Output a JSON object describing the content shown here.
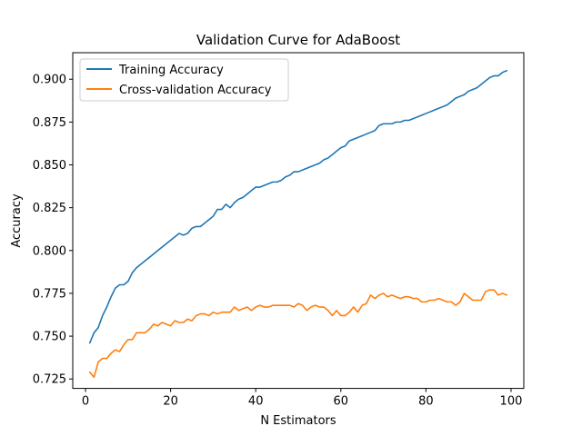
{
  "chart_data": {
    "type": "line",
    "title": "Validation Curve for AdaBoost",
    "xlabel": "N Estimators",
    "ylabel": "Accuracy",
    "xlim": [
      -3,
      103
    ],
    "ylim": [
      0.7195,
      0.9155
    ],
    "xticks": [
      0,
      20,
      40,
      60,
      80,
      100
    ],
    "yticks": [
      0.725,
      0.75,
      0.775,
      0.8,
      0.825,
      0.85,
      0.875,
      0.9
    ],
    "ytick_labels": [
      "0.725",
      "0.750",
      "0.775",
      "0.800",
      "0.825",
      "0.850",
      "0.875",
      "0.900"
    ],
    "grid": false,
    "legend_position": "upper-left",
    "series": [
      {
        "name": "Training Accuracy",
        "color": "#1f77b4",
        "x": [
          1,
          2,
          3,
          4,
          5,
          6,
          7,
          8,
          9,
          10,
          11,
          12,
          13,
          14,
          15,
          16,
          17,
          18,
          19,
          20,
          21,
          22,
          23,
          24,
          25,
          26,
          27,
          28,
          29,
          30,
          31,
          32,
          33,
          34,
          35,
          36,
          37,
          38,
          39,
          40,
          41,
          42,
          43,
          44,
          45,
          46,
          47,
          48,
          49,
          50,
          51,
          52,
          53,
          54,
          55,
          56,
          57,
          58,
          59,
          60,
          61,
          62,
          63,
          64,
          65,
          66,
          67,
          68,
          69,
          70,
          71,
          72,
          73,
          74,
          75,
          76,
          77,
          78,
          79,
          80,
          81,
          82,
          83,
          84,
          85,
          86,
          87,
          88,
          89,
          90,
          91,
          92,
          93,
          94,
          95,
          96,
          97,
          98,
          99
        ],
        "y": [
          0.746,
          0.752,
          0.755,
          0.762,
          0.767,
          0.773,
          0.778,
          0.78,
          0.78,
          0.782,
          0.787,
          0.79,
          0.792,
          0.794,
          0.796,
          0.798,
          0.8,
          0.802,
          0.804,
          0.806,
          0.808,
          0.81,
          0.809,
          0.81,
          0.813,
          0.814,
          0.814,
          0.816,
          0.818,
          0.82,
          0.824,
          0.824,
          0.827,
          0.825,
          0.828,
          0.83,
          0.831,
          0.833,
          0.835,
          0.837,
          0.837,
          0.838,
          0.839,
          0.84,
          0.84,
          0.841,
          0.843,
          0.844,
          0.846,
          0.846,
          0.847,
          0.848,
          0.849,
          0.85,
          0.851,
          0.853,
          0.854,
          0.856,
          0.858,
          0.86,
          0.861,
          0.864,
          0.865,
          0.866,
          0.867,
          0.868,
          0.869,
          0.87,
          0.873,
          0.874,
          0.874,
          0.874,
          0.875,
          0.875,
          0.876,
          0.876,
          0.877,
          0.878,
          0.879,
          0.88,
          0.881,
          0.882,
          0.883,
          0.884,
          0.885,
          0.887,
          0.889,
          0.89,
          0.891,
          0.893,
          0.894,
          0.895,
          0.897,
          0.899,
          0.901,
          0.902,
          0.902,
          0.904,
          0.905
        ]
      },
      {
        "name": "Cross-validation Accuracy",
        "color": "#ff7f0e",
        "x": [
          1,
          2,
          3,
          4,
          5,
          6,
          7,
          8,
          9,
          10,
          11,
          12,
          13,
          14,
          15,
          16,
          17,
          18,
          19,
          20,
          21,
          22,
          23,
          24,
          25,
          26,
          27,
          28,
          29,
          30,
          31,
          32,
          33,
          34,
          35,
          36,
          37,
          38,
          39,
          40,
          41,
          42,
          43,
          44,
          45,
          46,
          47,
          48,
          49,
          50,
          51,
          52,
          53,
          54,
          55,
          56,
          57,
          58,
          59,
          60,
          61,
          62,
          63,
          64,
          65,
          66,
          67,
          68,
          69,
          70,
          71,
          72,
          73,
          74,
          75,
          76,
          77,
          78,
          79,
          80,
          81,
          82,
          83,
          84,
          85,
          86,
          87,
          88,
          89,
          90,
          91,
          92,
          93,
          94,
          95,
          96,
          97,
          98,
          99
        ],
        "y": [
          0.729,
          0.726,
          0.735,
          0.737,
          0.737,
          0.74,
          0.742,
          0.741,
          0.745,
          0.748,
          0.748,
          0.752,
          0.752,
          0.752,
          0.754,
          0.757,
          0.756,
          0.758,
          0.757,
          0.756,
          0.759,
          0.758,
          0.758,
          0.76,
          0.759,
          0.762,
          0.763,
          0.763,
          0.762,
          0.764,
          0.763,
          0.764,
          0.764,
          0.764,
          0.767,
          0.765,
          0.766,
          0.767,
          0.765,
          0.767,
          0.768,
          0.767,
          0.767,
          0.768,
          0.768,
          0.768,
          0.768,
          0.768,
          0.767,
          0.769,
          0.768,
          0.765,
          0.767,
          0.768,
          0.767,
          0.767,
          0.765,
          0.762,
          0.765,
          0.762,
          0.762,
          0.764,
          0.767,
          0.764,
          0.768,
          0.769,
          0.774,
          0.772,
          0.774,
          0.775,
          0.773,
          0.774,
          0.773,
          0.772,
          0.773,
          0.773,
          0.772,
          0.772,
          0.77,
          0.77,
          0.771,
          0.771,
          0.772,
          0.771,
          0.77,
          0.77,
          0.768,
          0.77,
          0.775,
          0.773,
          0.771,
          0.771,
          0.771,
          0.776,
          0.777,
          0.777,
          0.774,
          0.775,
          0.774
        ]
      }
    ]
  }
}
